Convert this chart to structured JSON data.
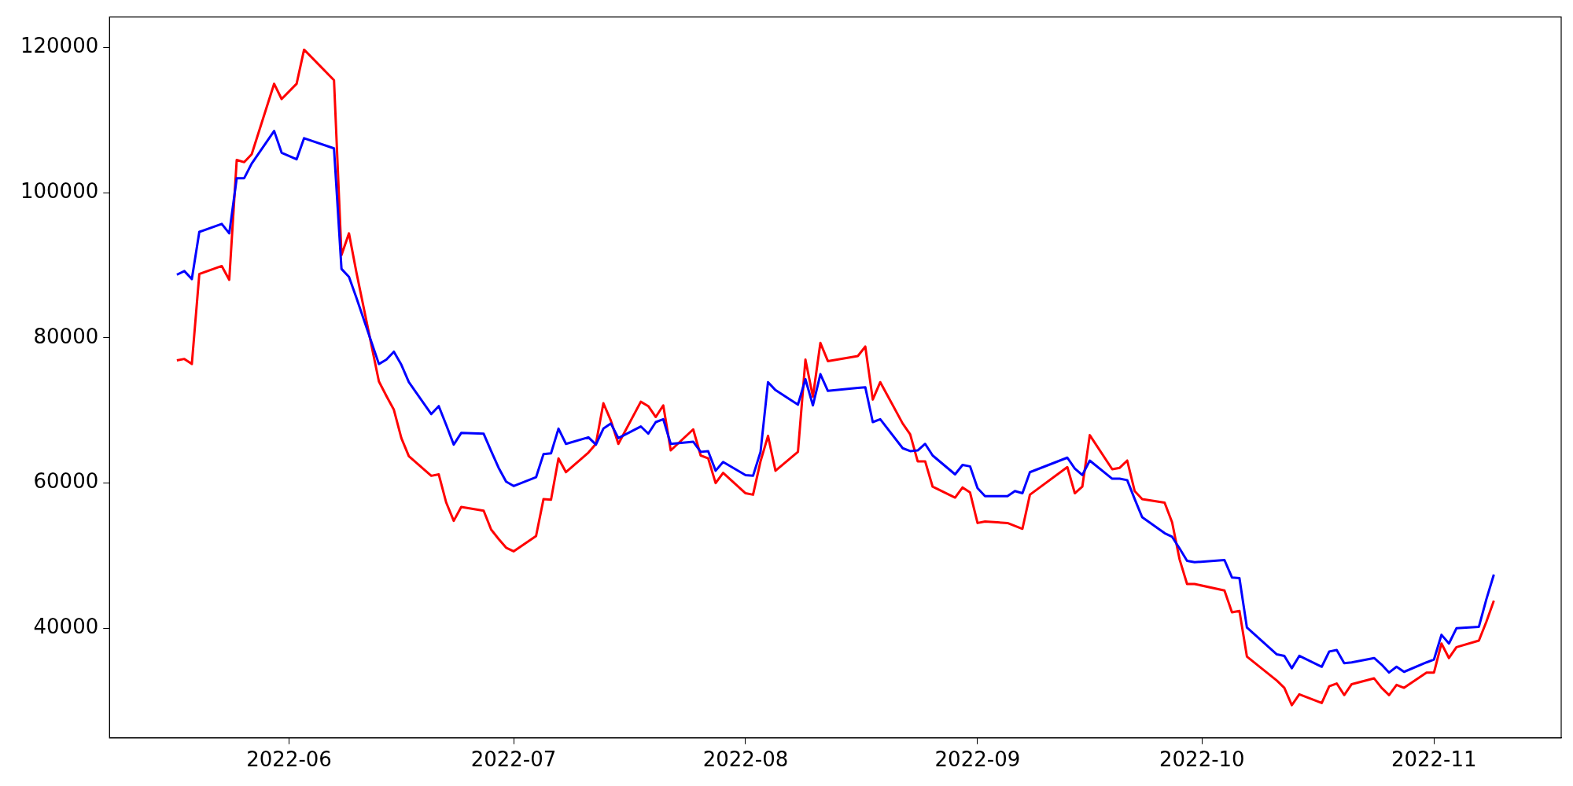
{
  "chart_data": {
    "type": "line",
    "x": [
      "2022-05-17",
      "2022-05-18",
      "2022-05-19",
      "2022-05-20",
      "2022-05-23",
      "2022-05-24",
      "2022-05-25",
      "2022-05-26",
      "2022-05-27",
      "2022-05-30",
      "2022-05-31",
      "2022-06-02",
      "2022-06-03",
      "2022-06-07",
      "2022-06-08",
      "2022-06-09",
      "2022-06-10",
      "2022-06-13",
      "2022-06-14",
      "2022-06-15",
      "2022-06-16",
      "2022-06-17",
      "2022-06-20",
      "2022-06-21",
      "2022-06-22",
      "2022-06-23",
      "2022-06-24",
      "2022-06-27",
      "2022-06-28",
      "2022-06-29",
      "2022-06-30",
      "2022-07-01",
      "2022-07-04",
      "2022-07-05",
      "2022-07-06",
      "2022-07-07",
      "2022-07-08",
      "2022-07-11",
      "2022-07-12",
      "2022-07-13",
      "2022-07-14",
      "2022-07-15",
      "2022-07-18",
      "2022-07-19",
      "2022-07-20",
      "2022-07-21",
      "2022-07-22",
      "2022-07-25",
      "2022-07-26",
      "2022-07-27",
      "2022-07-28",
      "2022-07-29",
      "2022-08-01",
      "2022-08-02",
      "2022-08-03",
      "2022-08-04",
      "2022-08-05",
      "2022-08-08",
      "2022-08-09",
      "2022-08-10",
      "2022-08-11",
      "2022-08-12",
      "2022-08-16",
      "2022-08-17",
      "2022-08-18",
      "2022-08-19",
      "2022-08-22",
      "2022-08-23",
      "2022-08-24",
      "2022-08-25",
      "2022-08-26",
      "2022-08-29",
      "2022-08-30",
      "2022-08-31",
      "2022-09-01",
      "2022-09-02",
      "2022-09-05",
      "2022-09-06",
      "2022-09-07",
      "2022-09-08",
      "2022-09-13",
      "2022-09-14",
      "2022-09-15",
      "2022-09-16",
      "2022-09-19",
      "2022-09-20",
      "2022-09-21",
      "2022-09-22",
      "2022-09-23",
      "2022-09-26",
      "2022-09-27",
      "2022-09-28",
      "2022-09-29",
      "2022-09-30",
      "2022-10-04",
      "2022-10-05",
      "2022-10-06",
      "2022-10-07",
      "2022-10-11",
      "2022-10-12",
      "2022-10-13",
      "2022-10-14",
      "2022-10-17",
      "2022-10-18",
      "2022-10-19",
      "2022-10-20",
      "2022-10-21",
      "2022-10-24",
      "2022-10-25",
      "2022-10-26",
      "2022-10-27",
      "2022-10-28",
      "2022-10-31",
      "2022-11-01",
      "2022-11-02",
      "2022-11-03",
      "2022-11-04",
      "2022-11-07",
      "2022-11-08",
      "2022-11-09"
    ],
    "series": [
      {
        "color": "#ff0000",
        "values": [
          76900,
          77100,
          76400,
          88800,
          89900,
          88000,
          104500,
          104200,
          105300,
          115000,
          112900,
          115000,
          119700,
          115500,
          91400,
          94400,
          89000,
          74000,
          72000,
          70100,
          66200,
          63700,
          61000,
          61200,
          57300,
          54800,
          56700,
          56200,
          53600,
          52300,
          51100,
          50600,
          52700,
          57800,
          57700,
          63400,
          61500,
          64200,
          65400,
          71000,
          68600,
          65400,
          71200,
          70600,
          69100,
          70700,
          64500,
          67400,
          63800,
          63400,
          60000,
          61400,
          58600,
          58400,
          63000,
          66500,
          61700,
          64300,
          77000,
          71900,
          79300,
          76800,
          77500,
          78800,
          71500,
          73900,
          68200,
          66700,
          63000,
          63000,
          59500,
          58000,
          59400,
          58700,
          54500,
          54700,
          54500,
          54100,
          53700,
          58400,
          62200,
          58600,
          59500,
          66600,
          61900,
          62100,
          63100,
          58900,
          57800,
          57300,
          54600,
          49500,
          46100,
          46100,
          45200,
          42200,
          42400,
          36100,
          32800,
          31800,
          29400,
          30900,
          29700,
          32000,
          32400,
          30800,
          32300,
          33100,
          31800,
          30800,
          32200,
          31800,
          33900,
          33900,
          37900,
          35900,
          37400,
          38300,
          40900,
          43800
        ]
      },
      {
        "color": "#0000ff",
        "values": [
          88700,
          89200,
          88100,
          94600,
          95700,
          94400,
          102000,
          102000,
          104000,
          108500,
          105500,
          104600,
          107500,
          106100,
          89500,
          88400,
          85500,
          76400,
          77000,
          78100,
          76300,
          73900,
          69500,
          70600,
          68000,
          65300,
          66900,
          66800,
          64400,
          62100,
          60200,
          59600,
          60800,
          64000,
          64100,
          67500,
          65400,
          66300,
          65300,
          67500,
          68200,
          66200,
          67800,
          66800,
          68400,
          68800,
          65400,
          65700,
          64300,
          64400,
          61700,
          62900,
          61100,
          61000,
          64300,
          73900,
          72800,
          70800,
          74300,
          70700,
          75000,
          72700,
          73100,
          73200,
          68400,
          68800,
          64800,
          64400,
          64500,
          65400,
          63800,
          61200,
          62500,
          62300,
          59300,
          58200,
          58200,
          58900,
          58600,
          61500,
          63500,
          62000,
          61100,
          63100,
          60600,
          60600,
          60400,
          57800,
          55300,
          53100,
          52600,
          51000,
          49300,
          49100,
          49400,
          47000,
          46900,
          40100,
          36400,
          36200,
          34500,
          36200,
          34700,
          36800,
          37000,
          35200,
          35300,
          35900,
          35000,
          33900,
          34700,
          34000,
          35300,
          35700,
          39100,
          37900,
          40000,
          40200,
          44000,
          47400
        ]
      }
    ],
    "xlim": [
      "2022-05-08",
      "2022-11-18"
    ],
    "xticks": [
      {
        "value": "2022-06-01",
        "label": "2022-06"
      },
      {
        "value": "2022-07-01",
        "label": "2022-07"
      },
      {
        "value": "2022-08-01",
        "label": "2022-08"
      },
      {
        "value": "2022-09-01",
        "label": "2022-09"
      },
      {
        "value": "2022-10-01",
        "label": "2022-10"
      },
      {
        "value": "2022-11-01",
        "label": "2022-11"
      }
    ],
    "ylim": [
      24900,
      124200
    ],
    "yticks": [
      40000,
      60000,
      80000,
      100000,
      120000
    ],
    "grid": false,
    "legend": false,
    "marker": "none",
    "line_style": "solid"
  }
}
